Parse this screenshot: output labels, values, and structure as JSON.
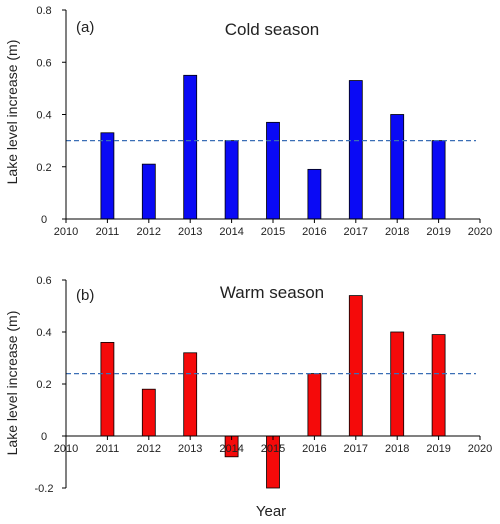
{
  "chart_data": [
    {
      "type": "bar",
      "panel_label": "(a)",
      "title": "Cold season",
      "ylabel": "Lake level increase (m)",
      "xlabel": "",
      "x": [
        2011,
        2012,
        2013,
        2014,
        2015,
        2016,
        2017,
        2018,
        2019
      ],
      "values": [
        0.33,
        0.21,
        0.55,
        0.3,
        0.37,
        0.19,
        0.53,
        0.4,
        0.3
      ],
      "reference_line": 0.3,
      "xlim": [
        2010,
        2020
      ],
      "ylim": [
        0,
        0.8
      ],
      "xticks": [
        "2010",
        "2011",
        "2012",
        "2013",
        "2014",
        "2015",
        "2016",
        "2017",
        "2018",
        "2019",
        "2020"
      ],
      "yticks": [
        "0",
        "0.2",
        "0.4",
        "0.6",
        "0.8"
      ],
      "yticks_values": [
        0,
        0.2,
        0.4,
        0.6,
        0.8
      ],
      "bar_color": "#0a0af5",
      "reference_color": "#3b6fb6",
      "grid": false
    },
    {
      "type": "bar",
      "panel_label": "(b)",
      "title": "Warm season",
      "ylabel": "Lake level increase (m)",
      "xlabel": "Year",
      "x": [
        2011,
        2012,
        2013,
        2014,
        2015,
        2016,
        2017,
        2018,
        2019
      ],
      "values": [
        0.36,
        0.18,
        0.32,
        -0.08,
        -0.2,
        0.24,
        0.54,
        0.4,
        0.39
      ],
      "reference_line": 0.24,
      "xlim": [
        2010,
        2020
      ],
      "ylim": [
        -0.2,
        0.6
      ],
      "xticks": [
        "2010",
        "2011",
        "2012",
        "2013",
        "2014",
        "2015",
        "2016",
        "2017",
        "2018",
        "2019",
        "2020"
      ],
      "yticks": [
        "-0.2",
        "0",
        "0.2",
        "0.4",
        "0.6"
      ],
      "yticks_values": [
        -0.2,
        0,
        0.2,
        0.4,
        0.6
      ],
      "bar_color": "#f50a0a",
      "reference_color": "#3b6fb6",
      "grid": false
    }
  ]
}
